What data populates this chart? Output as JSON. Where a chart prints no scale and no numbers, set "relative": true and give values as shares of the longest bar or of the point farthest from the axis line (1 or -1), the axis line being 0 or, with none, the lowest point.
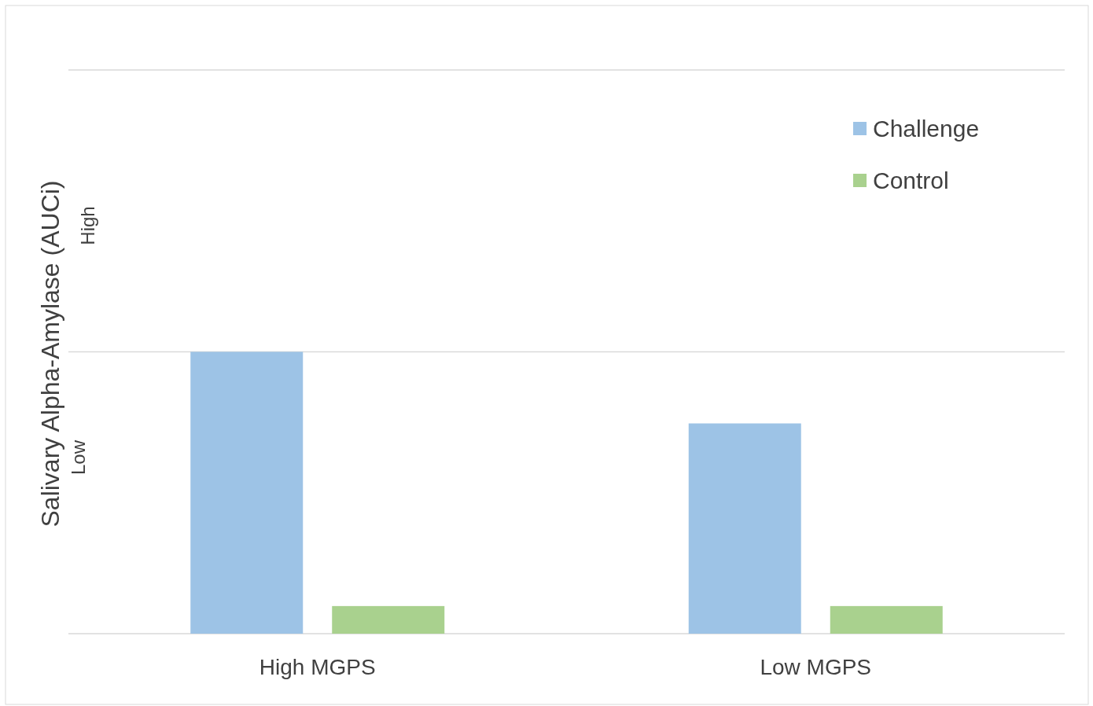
{
  "chart_data": {
    "type": "bar",
    "relative": true,
    "ylabel": "Salivary Alpha-Amylase  (AUCi)",
    "categories": [
      "High MGPS",
      "Low MGPS"
    ],
    "series": [
      {
        "name": "Challenge",
        "color": "#9dc3e6",
        "values": [
          1,
          0.746
        ]
      },
      {
        "name": "Control",
        "color": "#a9d18e",
        "values": [
          0.098,
          0.098
        ]
      }
    ],
    "annotations": [
      "Low",
      "High"
    ],
    "ref_lines": [
      {
        "axis": "y",
        "value": 1,
        "color": "#d9d9d9"
      },
      {
        "axis": "y",
        "value": 2,
        "color": "#d9d9d9"
      }
    ],
    "legend": "top right"
  }
}
